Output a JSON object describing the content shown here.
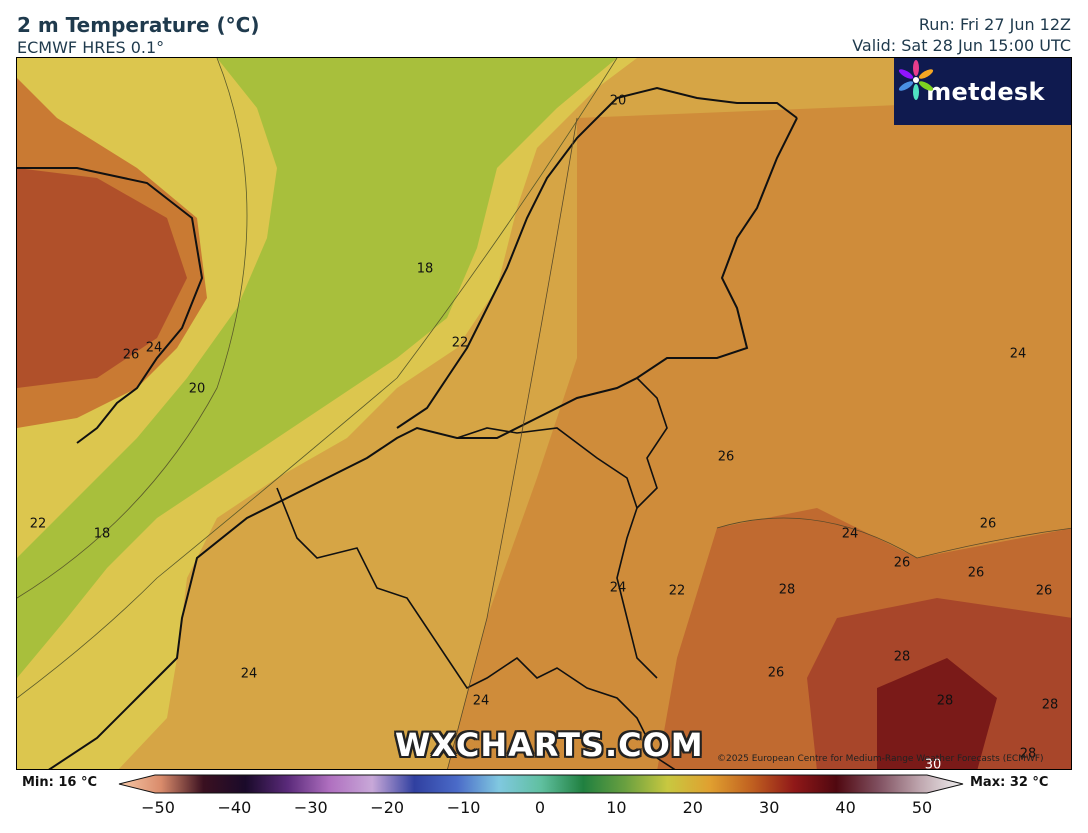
{
  "header": {
    "title": "2 m Temperature (°C)",
    "model": "ECMWF HRES 0.1°",
    "run": "Run: Fri 27 Jun 12Z",
    "valid": "Valid: Sat 28 Jun 15:00 UTC"
  },
  "logo": {
    "text": "metdesk",
    "icon": "metdesk-flower-logo"
  },
  "watermark": "WXCHARTS.COM",
  "copyright": "©2025 European Centre for Medium-Range Weather Forecasts (ECMWF)",
  "contour_labels": [
    "20",
    "18",
    "26",
    "24",
    "20",
    "22",
    "22",
    "18",
    "24",
    "26",
    "24",
    "26",
    "26",
    "26",
    "24",
    "22",
    "28",
    "26",
    "28",
    "28",
    "28",
    "24",
    "24",
    "26",
    "28",
    "30"
  ],
  "colorbar": {
    "min": "Min: 16 °C",
    "max": "Max: 32 °C",
    "ticks": [
      "−50",
      "−40",
      "−30",
      "−20",
      "−10",
      "0",
      "10",
      "20",
      "30",
      "40",
      "50"
    ],
    "range": [
      -50,
      50
    ]
  },
  "colors": {
    "header_text": "#1f3a4d",
    "logo_bg": "#0f1a4f",
    "sea_18": "#a8bf3c",
    "temp_20": "#d6c24a",
    "temp_24": "#d39a3e",
    "temp_26": "#c97a33",
    "temp_28": "#b0502a",
    "temp_30": "#7a1a18"
  }
}
